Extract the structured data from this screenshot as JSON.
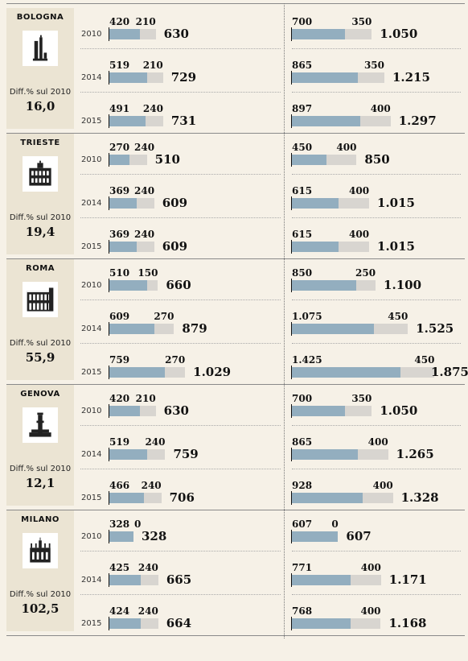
{
  "chart_data": {
    "type": "bar",
    "stacked": true,
    "diff_label": "Diff.% sul 2010",
    "cities": [
      {
        "name": "BOLOGNA",
        "icon": "bologna-towers-icon",
        "diff": "16,0",
        "years": [
          {
            "year": "2010",
            "left": {
              "a": 420,
              "b": 210,
              "a_label": "420",
              "b_label": "210",
              "total_label": "630"
            },
            "right": {
              "a": 700,
              "b": 350,
              "a_label": "700",
              "b_label": "350",
              "total_label": "1.050"
            }
          },
          {
            "year": "2014",
            "left": {
              "a": 519,
              "b": 210,
              "a_label": "519",
              "b_label": "210",
              "total_label": "729"
            },
            "right": {
              "a": 865,
              "b": 350,
              "a_label": "865",
              "b_label": "350",
              "total_label": "1.215"
            }
          },
          {
            "year": "2015",
            "left": {
              "a": 491,
              "b": 240,
              "a_label": "491",
              "b_label": "240",
              "total_label": "731"
            },
            "right": {
              "a": 897,
              "b": 400,
              "a_label": "897",
              "b_label": "400",
              "total_label": "1.297"
            }
          }
        ]
      },
      {
        "name": "TRIESTE",
        "icon": "trieste-building-icon",
        "diff": "19,4",
        "years": [
          {
            "year": "2010",
            "left": {
              "a": 270,
              "b": 240,
              "a_label": "270",
              "b_label": "240",
              "total_label": "510"
            },
            "right": {
              "a": 450,
              "b": 400,
              "a_label": "450",
              "b_label": "400",
              "total_label": "850"
            }
          },
          {
            "year": "2014",
            "left": {
              "a": 369,
              "b": 240,
              "a_label": "369",
              "b_label": "240",
              "total_label": "609"
            },
            "right": {
              "a": 615,
              "b": 400,
              "a_label": "615",
              "b_label": "400",
              "total_label": "1.015"
            }
          },
          {
            "year": "2015",
            "left": {
              "a": 369,
              "b": 240,
              "a_label": "369",
              "b_label": "240",
              "total_label": "609"
            },
            "right": {
              "a": 615,
              "b": 400,
              "a_label": "615",
              "b_label": "400",
              "total_label": "1.015"
            }
          }
        ]
      },
      {
        "name": "ROMA",
        "icon": "colosseum-icon",
        "diff": "55,9",
        "years": [
          {
            "year": "2010",
            "left": {
              "a": 510,
              "b": 150,
              "a_label": "510",
              "b_label": "150",
              "total_label": "660"
            },
            "right": {
              "a": 850,
              "b": 250,
              "a_label": "850",
              "b_label": "250",
              "total_label": "1.100"
            }
          },
          {
            "year": "2014",
            "left": {
              "a": 609,
              "b": 270,
              "a_label": "609",
              "b_label": "270",
              "total_label": "879"
            },
            "right": {
              "a": 1075,
              "b": 450,
              "a_label": "1.075",
              "b_label": "450",
              "total_label": "1.525"
            }
          },
          {
            "year": "2015",
            "left": {
              "a": 759,
              "b": 270,
              "a_label": "759",
              "b_label": "270",
              "total_label": "1.029"
            },
            "right": {
              "a": 1425,
              "b": 450,
              "a_label": "1.425",
              "b_label": "450",
              "total_label": "1.875"
            }
          }
        ]
      },
      {
        "name": "GENOVA",
        "icon": "lanterna-tower-icon",
        "diff": "12,1",
        "years": [
          {
            "year": "2010",
            "left": {
              "a": 420,
              "b": 210,
              "a_label": "420",
              "b_label": "210",
              "total_label": "630"
            },
            "right": {
              "a": 700,
              "b": 350,
              "a_label": "700",
              "b_label": "350",
              "total_label": "1.050"
            }
          },
          {
            "year": "2014",
            "left": {
              "a": 519,
              "b": 240,
              "a_label": "519",
              "b_label": "240",
              "total_label": "759"
            },
            "right": {
              "a": 865,
              "b": 400,
              "a_label": "865",
              "b_label": "400",
              "total_label": "1.265"
            }
          },
          {
            "year": "2015",
            "left": {
              "a": 466,
              "b": 240,
              "a_label": "466",
              "b_label": "240",
              "total_label": "706"
            },
            "right": {
              "a": 928,
              "b": 400,
              "a_label": "928",
              "b_label": "400",
              "total_label": "1.328"
            }
          }
        ]
      },
      {
        "name": "MILANO",
        "icon": "duomo-icon",
        "diff": "102,5",
        "years": [
          {
            "year": "2010",
            "left": {
              "a": 328,
              "b": 0,
              "a_label": "328",
              "b_label": "0",
              "total_label": "328"
            },
            "right": {
              "a": 607,
              "b": 0,
              "a_label": "607",
              "b_label": "0",
              "total_label": "607"
            }
          },
          {
            "year": "2014",
            "left": {
              "a": 425,
              "b": 240,
              "a_label": "425",
              "b_label": "240",
              "total_label": "665"
            },
            "right": {
              "a": 771,
              "b": 400,
              "a_label": "771",
              "b_label": "400",
              "total_label": "1.171"
            }
          },
          {
            "year": "2015",
            "left": {
              "a": 424,
              "b": 240,
              "a_label": "424",
              "b_label": "240",
              "total_label": "664"
            },
            "right": {
              "a": 768,
              "b": 400,
              "a_label": "768",
              "b_label": "400",
              "total_label": "1.168"
            }
          }
        ]
      }
    ]
  },
  "colors": {
    "base": "#93aebf",
    "extra": "#d8d5d0",
    "panel": "#ebe4d3",
    "background": "#f6f1e7"
  }
}
